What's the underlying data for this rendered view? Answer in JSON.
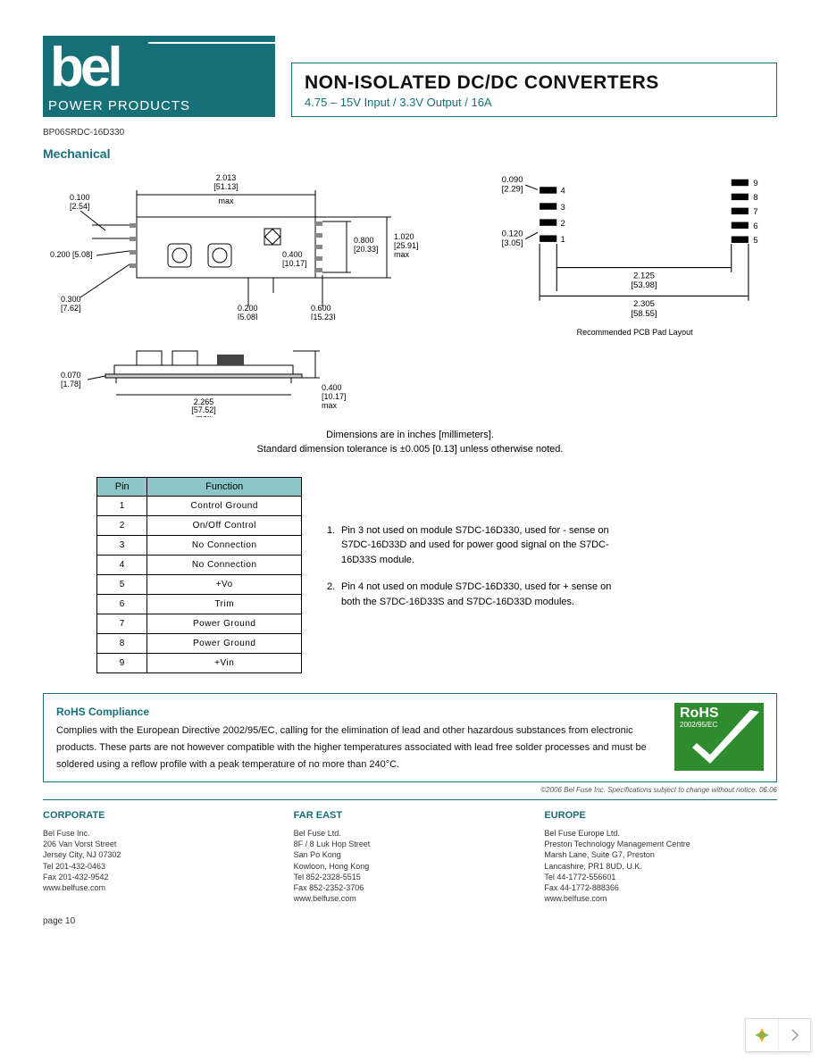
{
  "header": {
    "logo_bg": "#176f78",
    "logo_sub": "POWER PRODUCTS",
    "title_main": "NON-ISOLATED DC/DC CONVERTERS",
    "title_sub": "4.75 – 15V Input / 3.3V Output / 16A"
  },
  "part_number": "BP06SRDC-16D330",
  "section_heading": "Mechanical",
  "top_drawing": {
    "dims": {
      "d1": {
        "in": "0.100",
        "mm": "[2.54]"
      },
      "d2": {
        "in": "0.200",
        "mm": "[5.08]"
      },
      "d3": {
        "in": "0.300",
        "mm": "[7.62]"
      },
      "w": {
        "in": "2.013",
        "mm": "[51.13]",
        "suffix": "max"
      },
      "p1": {
        "in": "0.200",
        "mm": "[5.08]"
      },
      "p2": {
        "in": "0.400",
        "mm": "[10.17]"
      },
      "p3": {
        "in": "0.600",
        "mm": "[15.23]"
      },
      "h1": {
        "in": "0.800",
        "mm": "[20.33]"
      },
      "h2": {
        "in": "1.020",
        "mm": "[25.91]",
        "suffix": "max"
      }
    }
  },
  "pcb_drawing": {
    "dims": {
      "pad_h": {
        "in": "0.090",
        "mm": "[2.29]"
      },
      "pad_gap": {
        "in": "0.120",
        "mm": "[3.05]"
      },
      "w1": {
        "in": "2.125",
        "mm": "[53.98]"
      },
      "w2": {
        "in": "2.305",
        "mm": "[58.55]"
      }
    },
    "left_labels": [
      "4",
      "3",
      "2",
      "1"
    ],
    "right_labels": [
      "9",
      "8",
      "7",
      "6",
      "5"
    ],
    "caption": "Recommended PCB Pad Layout"
  },
  "side_drawing": {
    "dims": {
      "off": {
        "in": "0.070",
        "mm": "[1.78]"
      },
      "len": {
        "in": "2.265",
        "mm": "[57.52]",
        "suffix": "max"
      },
      "h": {
        "in": "0.400",
        "mm": "[10.17]",
        "suffix": "max"
      }
    }
  },
  "dim_note_1": "Dimensions are in inches [millimeters].",
  "dim_note_2": "Standard dimension tolerance is ±0.005 [0.13] unless otherwise noted.",
  "pin_table": {
    "headers": [
      "Pin",
      "Function"
    ],
    "rows": [
      [
        "1",
        "Control Ground"
      ],
      [
        "2",
        "On/Off Control"
      ],
      [
        "3",
        "No Connection"
      ],
      [
        "4",
        "No Connection"
      ],
      [
        "5",
        "+Vo"
      ],
      [
        "6",
        "Trim"
      ],
      [
        "7",
        "Power Ground"
      ],
      [
        "8",
        "Power Ground"
      ],
      [
        "9",
        "+Vin"
      ]
    ]
  },
  "pin_notes": [
    "Pin 3 not used on module S7DC-16D330, used for - sense on S7DC-16D33D and used for power good signal on the S7DC-16D33S module.",
    "Pin 4 not used on module S7DC-16D330, used for + sense on both the S7DC-16D33S and S7DC-16D33D modules."
  ],
  "rohs": {
    "title": "RoHS Compliance",
    "body": "Complies with the European Directive 2002/95/EC, calling for the elimination of lead and other hazardous substances from electronic products.  These parts are not however compatible with the higher temperatures associated with lead free solder processes and must be soldered using a reflow profile with a peak temperature of no more than 240°C.",
    "badge_top": "RoHS",
    "badge_sub": "2002/95/EC",
    "badge_green": "#2e8b2e"
  },
  "copyright": "©2006 Bel Fuse Inc.   Specifications subject to change without notice.   06.06",
  "footer": {
    "cols": [
      {
        "h": "CORPORATE",
        "lines": [
          "Bel Fuse Inc.",
          "206 Van Vorst Street",
          "Jersey City, NJ 07302",
          "Tel     201-432-0463",
          "Fax    201-432-9542",
          "www.belfuse.com"
        ]
      },
      {
        "h": "FAR EAST",
        "lines": [
          "Bel Fuse Ltd.",
          "8F / 8 Luk Hop Street",
          "San Po Kong",
          "Kowloon, Hong Kong",
          "Tel     852-2328-5515",
          "Fax 852-2352-3706",
          "www.belfuse.com"
        ]
      },
      {
        "h": "EUROPE",
        "lines": [
          "Bel Fuse Europe Ltd.",
          "Preston Technology Management Centre",
          "Marsh Lane, Suite G7, Preston",
          "Lancashire, PR1 8UD, U.K.",
          "Tel     44-1772-556601",
          "Fax 44-1772-888366",
          "www.belfuse.com"
        ]
      }
    ]
  },
  "page_num": "page 10"
}
